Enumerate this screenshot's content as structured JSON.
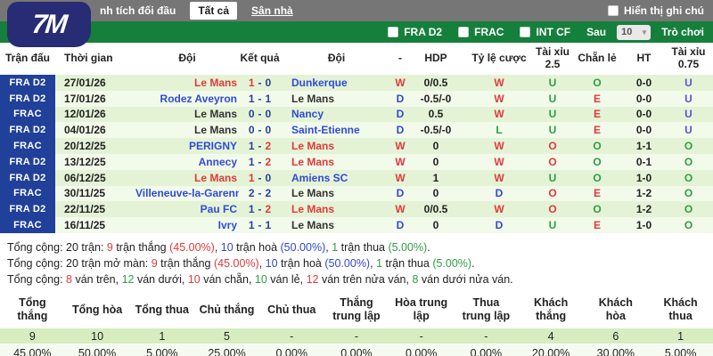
{
  "logo": {
    "text": "7M"
  },
  "topbar": {
    "title": "nh tích đối đầu",
    "tabs": [
      {
        "label": "Tất cả"
      },
      {
        "label": "Sân nhà"
      }
    ],
    "note_label": "Hiển thị ghi chú"
  },
  "filterbar": {
    "leagues": [
      {
        "t": "FRA D2"
      },
      {
        "t": "FRAC"
      },
      {
        "t": "INT CF"
      }
    ],
    "after_label": "Sau",
    "select_value": "10",
    "chevron": "▾",
    "games_label": "Trò chơi"
  },
  "colors": {
    "accent_green": "#15803c",
    "league_navy": "#21409a",
    "win_red": "#e03a3a",
    "draw_blue": "#3347d1",
    "loss_green": "#2f9e44",
    "link_blue": "#2f4bd7",
    "under_purple": "#5b53d3"
  },
  "match_table": {
    "headers": [
      "Trận đấu",
      "Thời gian",
      "Đội",
      "Kết quả",
      "Đội",
      "-",
      "HDP",
      "Tỷ lệ cược",
      "Tài xỉu 2.5",
      "Chẵn lẻ",
      "HT",
      "Tài xỉu 0.75"
    ],
    "rows": [
      {
        "league": "FRA D2",
        "date": "27/01/26",
        "home": "Le Mans",
        "home_c": "red",
        "s1": "1",
        "s1c": "red",
        "s2": "0",
        "s2c": "navy",
        "away": "Dunkerque",
        "away_c": "link",
        "res": "W",
        "res_c": "red",
        "hdp": "0/0.5",
        "odds": "W",
        "odds_c": "red",
        "ou": "U",
        "ou_c": "green",
        "oe": "O",
        "oe_c": "green",
        "ht": "0-0",
        "ou2": "U",
        "ou2_c": "purple"
      },
      {
        "league": "FRA D2",
        "date": "17/01/26",
        "home": "Rodez Aveyron",
        "home_c": "link",
        "s1": "1",
        "s1c": "navy",
        "s2": "1",
        "s2c": "navy",
        "away": "Le Mans",
        "away_c": "dark",
        "res": "D",
        "res_c": "blue",
        "hdp": "-0.5/-0",
        "odds": "W",
        "odds_c": "red",
        "ou": "U",
        "ou_c": "green",
        "oe": "E",
        "oe_c": "red",
        "ht": "0-0",
        "ou2": "U",
        "ou2_c": "purple"
      },
      {
        "league": "FRAC",
        "date": "12/01/26",
        "home": "Le Mans",
        "home_c": "dark",
        "s1": "0",
        "s1c": "navy",
        "s2": "0",
        "s2c": "navy",
        "away": "Nancy",
        "away_c": "link",
        "res": "D",
        "res_c": "blue",
        "hdp": "0.5",
        "odds": "W",
        "odds_c": "red",
        "ou": "U",
        "ou_c": "green",
        "oe": "E",
        "oe_c": "red",
        "ht": "0-0",
        "ou2": "U",
        "ou2_c": "purple"
      },
      {
        "league": "FRA D2",
        "date": "04/01/26",
        "home": "Le Mans",
        "home_c": "dark",
        "s1": "0",
        "s1c": "navy",
        "s2": "0",
        "s2c": "navy",
        "away": "Saint-Etienne",
        "away_c": "link",
        "res": "D",
        "res_c": "blue",
        "hdp": "-0.5/-0",
        "odds": "L",
        "odds_c": "green",
        "ou": "U",
        "ou_c": "green",
        "oe": "E",
        "oe_c": "red",
        "ht": "0-0",
        "ou2": "U",
        "ou2_c": "purple"
      },
      {
        "league": "FRAC",
        "date": "20/12/25",
        "home": "PERIGNY",
        "home_c": "link",
        "s1": "1",
        "s1c": "navy",
        "s2": "2",
        "s2c": "red",
        "away": "Le Mans",
        "away_c": "red",
        "res": "W",
        "res_c": "red",
        "hdp": "0",
        "odds": "W",
        "odds_c": "red",
        "ou": "O",
        "ou_c": "red",
        "oe": "O",
        "oe_c": "green",
        "ht": "1-1",
        "ou2": "O",
        "ou2_c": "green"
      },
      {
        "league": "FRA D2",
        "date": "13/12/25",
        "home": "Annecy",
        "home_c": "link",
        "s1": "1",
        "s1c": "navy",
        "s2": "2",
        "s2c": "red",
        "away": "Le Mans",
        "away_c": "red",
        "res": "W",
        "res_c": "red",
        "hdp": "0",
        "odds": "W",
        "odds_c": "red",
        "ou": "O",
        "ou_c": "red",
        "oe": "O",
        "oe_c": "green",
        "ht": "0-1",
        "ou2": "O",
        "ou2_c": "green"
      },
      {
        "league": "FRA D2",
        "date": "06/12/25",
        "home": "Le Mans",
        "home_c": "red",
        "s1": "1",
        "s1c": "red",
        "s2": "0",
        "s2c": "navy",
        "away": "Amiens SC",
        "away_c": "link",
        "res": "W",
        "res_c": "red",
        "hdp": "1",
        "odds": "W",
        "odds_c": "red",
        "ou": "U",
        "ou_c": "green",
        "oe": "O",
        "oe_c": "green",
        "ht": "1-0",
        "ou2": "O",
        "ou2_c": "green"
      },
      {
        "league": "FRAC",
        "date": "30/11/25",
        "home": "Villeneuve-la-Garenne",
        "home_c": "link",
        "s1": "2",
        "s1c": "navy",
        "s2": "2",
        "s2c": "navy",
        "away": "Le Mans",
        "away_c": "dark",
        "res": "D",
        "res_c": "blue",
        "hdp": "0",
        "odds": "D",
        "odds_c": "blue",
        "ou": "O",
        "ou_c": "red",
        "oe": "E",
        "oe_c": "red",
        "ht": "1-2",
        "ou2": "O",
        "ou2_c": "green"
      },
      {
        "league": "FRA D2",
        "date": "22/11/25",
        "home": "Pau FC",
        "home_c": "link",
        "s1": "1",
        "s1c": "navy",
        "s2": "2",
        "s2c": "red",
        "away": "Le Mans",
        "away_c": "red",
        "res": "W",
        "res_c": "red",
        "hdp": "0/0.5",
        "odds": "W",
        "odds_c": "red",
        "ou": "O",
        "ou_c": "red",
        "oe": "O",
        "oe_c": "green",
        "ht": "1-2",
        "ou2": "O",
        "ou2_c": "green"
      },
      {
        "league": "FRAC",
        "date": "16/11/25",
        "home": "Ivry",
        "home_c": "link",
        "s1": "1",
        "s1c": "navy",
        "s2": "1",
        "s2c": "navy",
        "away": "Le Mans",
        "away_c": "dark",
        "res": "D",
        "res_c": "blue",
        "hdp": "0",
        "odds": "D",
        "odds_c": "blue",
        "ou": "U",
        "ou_c": "green",
        "oe": "E",
        "oe_c": "red",
        "ht": "1-0",
        "ou2": "O",
        "ou2_c": "green"
      }
    ]
  },
  "summary": {
    "lines": [
      {
        "segments": [
          {
            "t": "Tổng cộng: 20 trận: ",
            "c": "text"
          },
          {
            "t": "9",
            "c": "red"
          },
          {
            "t": " trận thắng ",
            "c": "text"
          },
          {
            "t": "(45.00%)",
            "c": "red"
          },
          {
            "t": ", ",
            "c": "text"
          },
          {
            "t": "10",
            "c": "blue"
          },
          {
            "t": " trận hoà ",
            "c": "text"
          },
          {
            "t": "(50.00%)",
            "c": "blue"
          },
          {
            "t": ", ",
            "c": "text"
          },
          {
            "t": "1",
            "c": "green"
          },
          {
            "t": " trận thua ",
            "c": "text"
          },
          {
            "t": "(5.00%)",
            "c": "green"
          },
          {
            "t": ".",
            "c": "text"
          }
        ]
      },
      {
        "segments": [
          {
            "t": "Tổng cộng: 20 trận mở màn: ",
            "c": "text"
          },
          {
            "t": "9",
            "c": "red"
          },
          {
            "t": " trận thắng ",
            "c": "text"
          },
          {
            "t": "(45.00%)",
            "c": "red"
          },
          {
            "t": ", ",
            "c": "text"
          },
          {
            "t": "10",
            "c": "blue"
          },
          {
            "t": " trận hoà ",
            "c": "text"
          },
          {
            "t": "(50.00%)",
            "c": "blue"
          },
          {
            "t": ", ",
            "c": "text"
          },
          {
            "t": "1",
            "c": "green"
          },
          {
            "t": " trận thua ",
            "c": "text"
          },
          {
            "t": "(5.00%)",
            "c": "green"
          },
          {
            "t": ".",
            "c": "text"
          }
        ]
      },
      {
        "segments": [
          {
            "t": "Tổng cộng: ",
            "c": "text"
          },
          {
            "t": "8",
            "c": "red"
          },
          {
            "t": " ván trên, ",
            "c": "text"
          },
          {
            "t": "12",
            "c": "green"
          },
          {
            "t": " ván dưới, ",
            "c": "text"
          },
          {
            "t": "10",
            "c": "red"
          },
          {
            "t": " ván chẵn, ",
            "c": "text"
          },
          {
            "t": "10",
            "c": "green"
          },
          {
            "t": " ván lẻ, ",
            "c": "text"
          },
          {
            "t": "12",
            "c": "red"
          },
          {
            "t": " ván trên nửa ván, ",
            "c": "text"
          },
          {
            "t": "8",
            "c": "green"
          },
          {
            "t": " ván dưới nửa ván.",
            "c": "text"
          }
        ]
      }
    ]
  },
  "stats_table": {
    "headers": [
      {
        "t": "Tổng thắng"
      },
      {
        "t": "Tổng hòa"
      },
      {
        "t": "Tổng thua"
      },
      {
        "t": "Chủ thắng"
      },
      {
        "t": "Chủ thua"
      },
      {
        "t": "Thắng trung lập"
      },
      {
        "t": "Hòa trung lập"
      },
      {
        "t": "Thua trung lập"
      },
      {
        "t": "Khách thắng"
      },
      {
        "t": "Khách hòa"
      },
      {
        "t": "Khách thua"
      }
    ],
    "counts": [
      {
        "t": "9"
      },
      {
        "t": "10"
      },
      {
        "t": "1"
      },
      {
        "t": "5"
      },
      {
        "t": "-"
      },
      {
        "t": "-"
      },
      {
        "t": "-"
      },
      {
        "t": "-"
      },
      {
        "t": "4"
      },
      {
        "t": "6"
      },
      {
        "t": "1"
      }
    ],
    "percents": [
      {
        "t": "45.00%"
      },
      {
        "t": "50.00%"
      },
      {
        "t": "5.00%"
      },
      {
        "t": "25.00%"
      },
      {
        "t": "0.00%"
      },
      {
        "t": "0.00%"
      },
      {
        "t": "0.00%"
      },
      {
        "t": "0.00%"
      },
      {
        "t": "20.00%"
      },
      {
        "t": "30.00%"
      },
      {
        "t": "5.00%"
      }
    ]
  }
}
